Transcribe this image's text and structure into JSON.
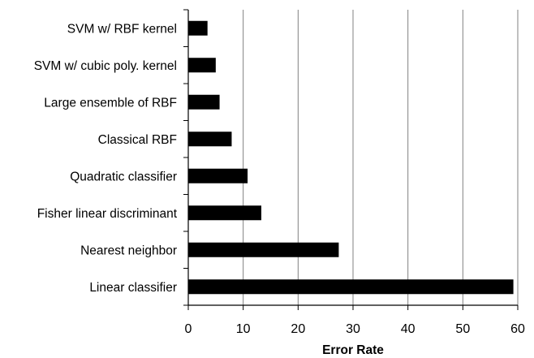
{
  "chart_data": {
    "type": "bar",
    "orientation": "horizontal",
    "title": "",
    "xlabel": "Error Rate",
    "ylabel": "",
    "categories": [
      "SVM w/ RBF kernel",
      "SVM w/ cubic poly. kernel",
      "Large ensemble of RBF",
      "Classical RBF",
      "Quadratic classifier",
      "Fisher linear discriminant",
      "Nearest neighbor",
      "Linear classifier"
    ],
    "values": [
      3.5,
      5,
      5.7,
      7.9,
      10.8,
      13.3,
      27.4,
      59.2
    ],
    "xlim": [
      0,
      60
    ],
    "xticks": [
      0,
      10,
      20,
      30,
      40,
      50,
      60
    ],
    "tick_labels": [
      "0",
      "10",
      "20",
      "30",
      "40",
      "50",
      "60"
    ],
    "grid": "vertical gridlines at major ticks",
    "legend": "none",
    "bar_color": "#000000",
    "grid_color": "#808080"
  }
}
